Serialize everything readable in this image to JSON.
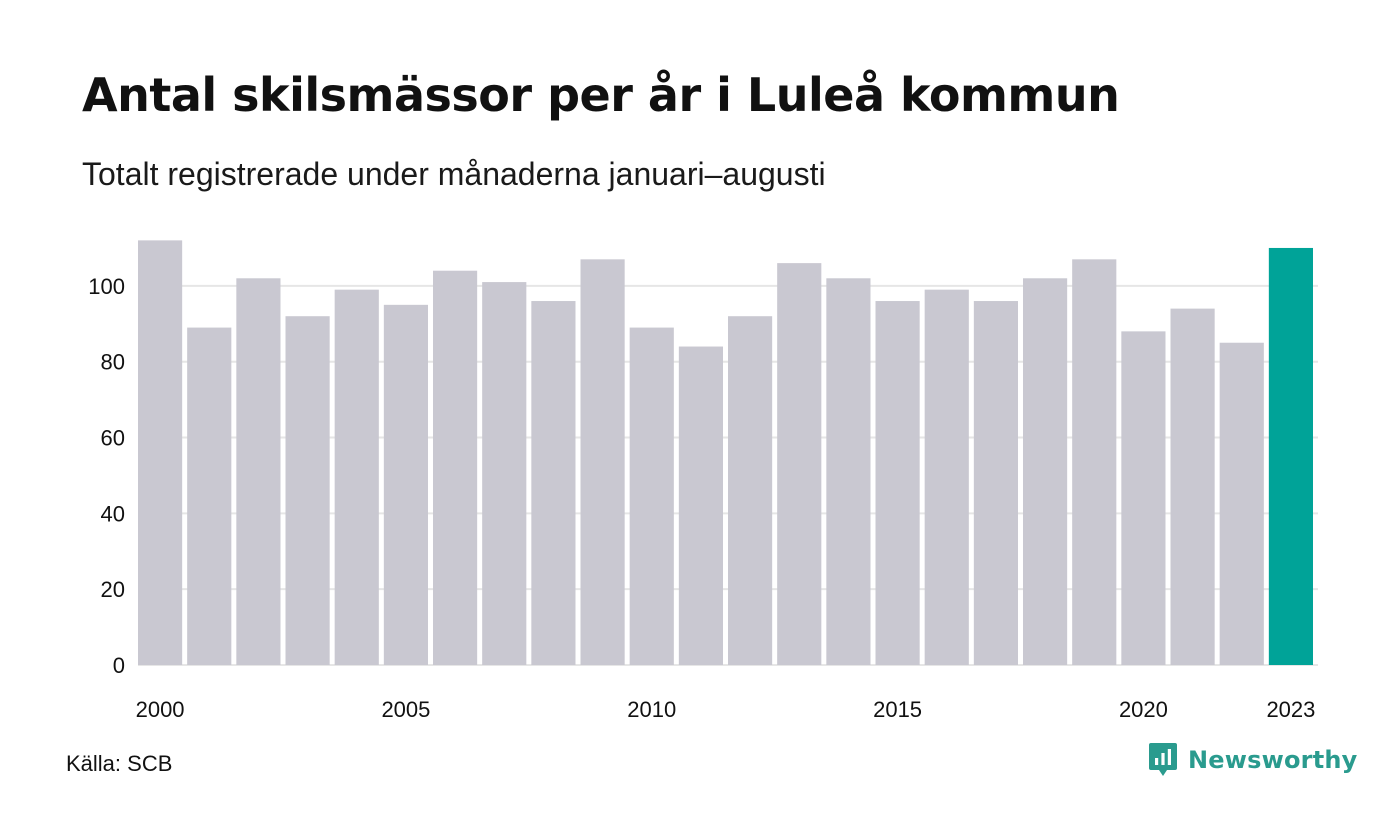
{
  "title": "Antal skilsmässor per år i Luleå kommun",
  "subtitle": "Totalt registrerade under månaderna januari–augusti",
  "source": "Källa: SCB",
  "brand": {
    "name": "Newsworthy",
    "icon": "newsworthy-chart-bubble-icon"
  },
  "colors": {
    "bar": "#c9c8d1",
    "highlight": "#00a398",
    "grid": "#e6e6e6",
    "brand": "#2a9b8e"
  },
  "chart_data": {
    "type": "bar",
    "title": "Antal skilsmässor per år i Luleå kommun",
    "subtitle": "Totalt registrerade under månaderna januari–augusti",
    "categories": [
      "2000",
      "2001",
      "2002",
      "2003",
      "2004",
      "2005",
      "2006",
      "2007",
      "2008",
      "2009",
      "2010",
      "2011",
      "2012",
      "2013",
      "2014",
      "2015",
      "2016",
      "2017",
      "2018",
      "2019",
      "2020",
      "2021",
      "2022",
      "2023"
    ],
    "values": [
      112,
      89,
      102,
      92,
      99,
      95,
      104,
      101,
      96,
      107,
      89,
      84,
      92,
      106,
      102,
      96,
      99,
      96,
      102,
      107,
      88,
      94,
      85,
      110
    ],
    "highlight_index": 23,
    "x_tick_labels": [
      "2000",
      "2005",
      "2010",
      "2015",
      "2020",
      "2023"
    ],
    "y_ticks": [
      0,
      20,
      40,
      60,
      80,
      100
    ],
    "ylim": [
      0,
      115
    ],
    "grid": true,
    "legend": false,
    "xlabel": "",
    "ylabel": ""
  }
}
